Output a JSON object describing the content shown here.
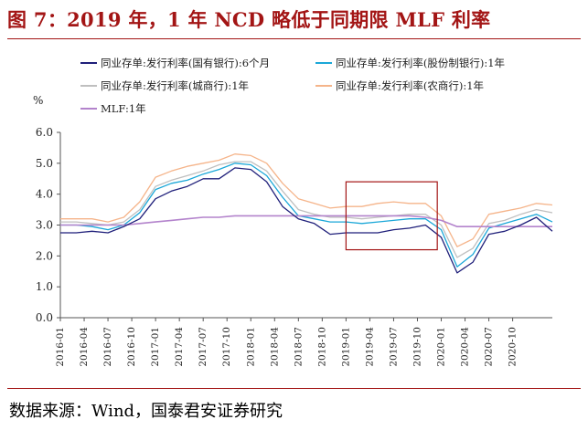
{
  "title": "图 7：2019 年，1 年 NCD 略低于同期限 MLF 利率",
  "source": "数据来源：Wind，国泰君安证券研究",
  "chart_data": {
    "type": "line",
    "ylabel": "%",
    "ylim": [
      0,
      6
    ],
    "yticks": [
      "0.0",
      "1.0",
      "2.0",
      "3.0",
      "4.0",
      "5.0",
      "6.0"
    ],
    "xticks": [
      "2016-01",
      "2016-04",
      "2016-07",
      "2016-10",
      "2017-01",
      "2017-04",
      "2017-07",
      "2017-10",
      "2018-01",
      "2018-04",
      "2018-07",
      "2018-10",
      "2019-01",
      "2019-04",
      "2019-07",
      "2019-10",
      "2020-01",
      "2020-04",
      "2020-07",
      "2020-10"
    ],
    "x_months": [
      0,
      2,
      4,
      6,
      8,
      10,
      12,
      14,
      16,
      18,
      20,
      22,
      24,
      26,
      28,
      30,
      32,
      34,
      36,
      38,
      40,
      42,
      44,
      46,
      48,
      50,
      52,
      54,
      56,
      58,
      60,
      62
    ],
    "legend_placement": "top",
    "annotation": "highlight-box 2019-01 to 2019-12",
    "series": [
      {
        "name": "同业存单:发行利率(国有银行):6个月",
        "color": "#1f1f7a",
        "values": [
          2.75,
          2.75,
          2.8,
          2.75,
          2.95,
          3.2,
          3.85,
          4.1,
          4.25,
          4.5,
          4.5,
          4.85,
          4.8,
          4.4,
          3.6,
          3.2,
          3.05,
          2.7,
          2.75,
          2.75,
          2.75,
          2.85,
          2.9,
          3.0,
          2.6,
          1.45,
          1.8,
          2.7,
          2.8,
          3.0,
          3.25,
          2.8
        ]
      },
      {
        "name": "同业存单:发行利率(股份制银行):1年",
        "color": "#1aa7d8",
        "values": [
          3.0,
          3.0,
          2.95,
          2.85,
          3.0,
          3.4,
          4.15,
          4.35,
          4.45,
          4.65,
          4.8,
          5.0,
          4.95,
          4.6,
          3.9,
          3.3,
          3.2,
          3.1,
          3.1,
          3.05,
          3.1,
          3.15,
          3.2,
          3.2,
          2.85,
          1.65,
          2.05,
          2.9,
          3.05,
          3.2,
          3.35,
          3.1
        ]
      },
      {
        "name": "同业存单:发行利率(城商行):1年",
        "color": "#bfbfbf",
        "values": [
          3.1,
          3.1,
          3.05,
          3.0,
          3.1,
          3.5,
          4.25,
          4.45,
          4.6,
          4.75,
          4.95,
          5.05,
          5.05,
          4.75,
          4.1,
          3.5,
          3.35,
          3.25,
          3.25,
          3.2,
          3.25,
          3.3,
          3.35,
          3.35,
          3.0,
          1.95,
          2.25,
          3.05,
          3.15,
          3.35,
          3.5,
          3.4
        ]
      },
      {
        "name": "同业存单:发行利率(农商行):1年",
        "color": "#f5b48a",
        "values": [
          3.2,
          3.2,
          3.2,
          3.1,
          3.25,
          3.75,
          4.55,
          4.75,
          4.9,
          5.0,
          5.1,
          5.3,
          5.25,
          5.0,
          4.35,
          3.85,
          3.7,
          3.55,
          3.6,
          3.6,
          3.7,
          3.75,
          3.7,
          3.7,
          3.3,
          2.3,
          2.55,
          3.35,
          3.45,
          3.55,
          3.7,
          3.65
        ]
      },
      {
        "name": "MLF:1年",
        "color": "#b383cc",
        "values": [
          3.0,
          3.0,
          3.0,
          3.0,
          3.0,
          3.05,
          3.1,
          3.15,
          3.2,
          3.25,
          3.25,
          3.3,
          3.3,
          3.3,
          3.3,
          3.3,
          3.3,
          3.3,
          3.3,
          3.3,
          3.3,
          3.3,
          3.3,
          3.25,
          3.15,
          2.95,
          2.95,
          2.95,
          2.95,
          2.95,
          2.95,
          2.95
        ]
      }
    ]
  }
}
